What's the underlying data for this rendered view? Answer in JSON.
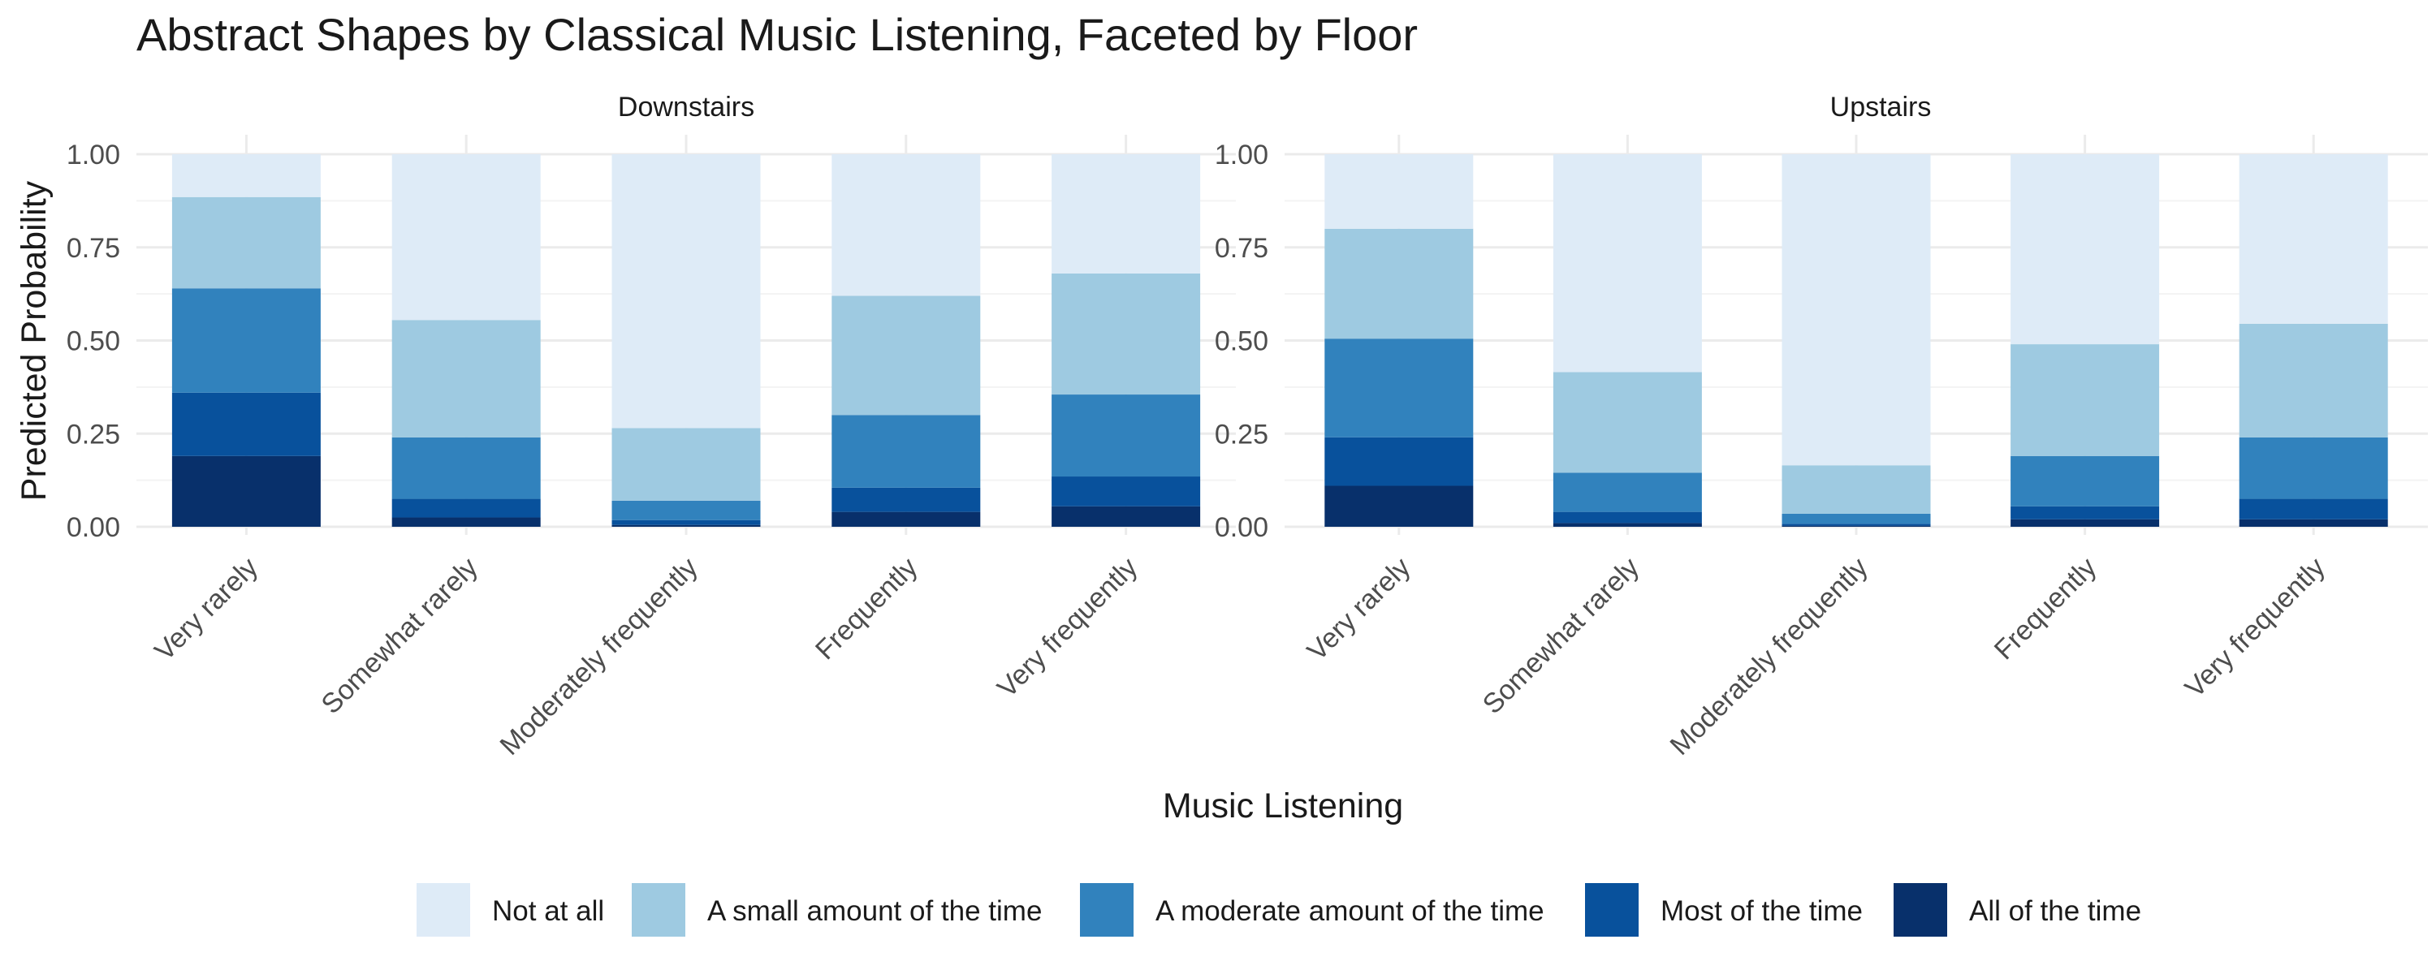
{
  "chart_data": {
    "type": "bar",
    "stacked": true,
    "title": "Abstract Shapes by Classical Music Listening, Faceted by Floor",
    "xlabel": "Music Listening",
    "ylabel": "Predicted Probability",
    "ylim": [
      0,
      1
    ],
    "yticks": [
      "0.00",
      "0.25",
      "0.50",
      "0.75",
      "1.00"
    ],
    "categories": [
      "Very rarely",
      "Somewhat rarely",
      "Moderately frequently",
      "Frequently",
      "Very frequently"
    ],
    "grid": true,
    "legend_position": "bottom",
    "levels": [
      {
        "name": "All of the time",
        "color": "#08306b"
      },
      {
        "name": "Most of the time",
        "color": "#08519c"
      },
      {
        "name": "A moderate amount of the time",
        "color": "#3182bd"
      },
      {
        "name": "A small amount of the time",
        "color": "#9ecae1"
      },
      {
        "name": "Not at all",
        "color": "#deebf7"
      }
    ],
    "legend_order": [
      "Not at all",
      "A small amount of the time",
      "A moderate amount of the time",
      "Most of the time",
      "All of the time"
    ],
    "facets": [
      {
        "label": "Downstairs",
        "cumulative": [
          [
            0.19,
            0.36,
            0.64,
            0.885,
            1.0
          ],
          [
            0.025,
            0.075,
            0.24,
            0.555,
            1.0
          ],
          [
            0.005,
            0.018,
            0.07,
            0.265,
            1.0
          ],
          [
            0.04,
            0.105,
            0.3,
            0.62,
            1.0
          ],
          [
            0.055,
            0.135,
            0.355,
            0.68,
            1.0
          ]
        ]
      },
      {
        "label": "Upstairs",
        "cumulative": [
          [
            0.11,
            0.24,
            0.505,
            0.8,
            1.0
          ],
          [
            0.01,
            0.04,
            0.145,
            0.415,
            1.0
          ],
          [
            0.003,
            0.008,
            0.035,
            0.165,
            1.0
          ],
          [
            0.02,
            0.055,
            0.19,
            0.49,
            1.0
          ],
          [
            0.02,
            0.075,
            0.24,
            0.545,
            1.0
          ]
        ]
      }
    ]
  }
}
